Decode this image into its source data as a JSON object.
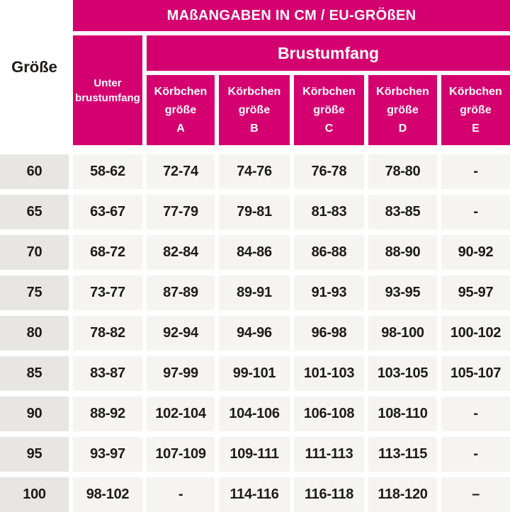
{
  "colors": {
    "brand_pink": "#D5006F",
    "size_col_bg": "#E8E6E3",
    "value_cell_bg": "#F5F4F1",
    "text_dark": "#1D1B1A",
    "header_text": "#FFFFFF",
    "page_bg": "#FFFFFF"
  },
  "header": {
    "title": "MAßANGABEN IN CM / EU-GRÖßEN",
    "size_label": "Größe",
    "underbust_line1": "Unter",
    "underbust_line2": "brustumfang",
    "bust_label": "Brustumfang",
    "cup_line1": "Körbchen",
    "cup_line2": "größe",
    "cup_letters": [
      "A",
      "B",
      "C",
      "D",
      "E"
    ]
  },
  "chart_data": {
    "type": "table",
    "title": "MAßANGABEN IN CM / EU-GRÖßEN",
    "units": "cm",
    "columns": [
      "Größe",
      "Unterbrustumfang",
      "Körbchengröße A",
      "Körbchengröße B",
      "Körbchengröße C",
      "Körbchengröße D",
      "Körbchengröße E"
    ],
    "column_group": {
      "label": "Brustumfang",
      "spans_columns": [
        "Körbchengröße A",
        "Körbchengröße B",
        "Körbchengröße C",
        "Körbchengröße D",
        "Körbchengröße E"
      ]
    },
    "rows": [
      [
        "60",
        "58-62",
        "72-74",
        "74-76",
        "76-78",
        "78-80",
        "-"
      ],
      [
        "65",
        "63-67",
        "77-79",
        "79-81",
        "81-83",
        "83-85",
        "-"
      ],
      [
        "70",
        "68-72",
        "82-84",
        "84-86",
        "86-88",
        "88-90",
        "90-92"
      ],
      [
        "75",
        "73-77",
        "87-89",
        "89-91",
        "91-93",
        "93-95",
        "95-97"
      ],
      [
        "80",
        "78-82",
        "92-94",
        "94-96",
        "96-98",
        "98-100",
        "100-102"
      ],
      [
        "85",
        "83-87",
        "97-99",
        "99-101",
        "101-103",
        "103-105",
        "105-107"
      ],
      [
        "90",
        "88-92",
        "102-104",
        "104-106",
        "106-108",
        "108-110",
        "-"
      ],
      [
        "95",
        "93-97",
        "107-109",
        "109-111",
        "111-113",
        "113-115",
        "-"
      ],
      [
        "100",
        "98-102",
        "-",
        "114-116",
        "116-118",
        "118-120",
        "–"
      ]
    ]
  }
}
